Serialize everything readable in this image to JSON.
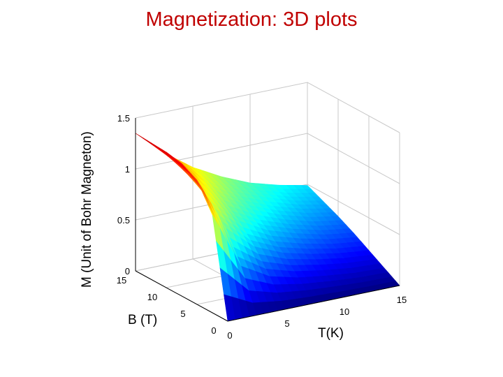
{
  "slide": {
    "title": "Magnetization: 3D plots"
  },
  "chart_data": {
    "type": "surface",
    "title": "",
    "xlabel": "T(K)",
    "ylabel": "B (T)",
    "zlabel": "M (Unit of Bohr Magneton)",
    "xlim": [
      0,
      15
    ],
    "ylim": [
      0,
      15
    ],
    "zlim": [
      0,
      1.5
    ],
    "x_ticks": [
      "0",
      "5",
      "10",
      "15"
    ],
    "y_ticks": [
      "0",
      "5",
      "10",
      "15"
    ],
    "z_ticks": [
      "0",
      "0.5",
      "1",
      "1.5"
    ],
    "grid": true,
    "colormap": "jet",
    "x": [
      0,
      2.5,
      5,
      7.5,
      10,
      12.5,
      15
    ],
    "y": [
      0,
      2.5,
      5,
      7.5,
      10,
      12.5,
      15
    ],
    "z": [
      [
        0.0,
        0.0,
        0.0,
        0.0,
        0.0,
        0.0,
        0.0
      ],
      [
        0.96,
        0.4,
        0.24,
        0.17,
        0.13,
        0.1,
        0.09
      ],
      [
        1.22,
        0.69,
        0.45,
        0.33,
        0.26,
        0.21,
        0.18
      ],
      [
        1.3,
        0.87,
        0.62,
        0.47,
        0.38,
        0.31,
        0.27
      ],
      [
        1.33,
        0.98,
        0.74,
        0.59,
        0.48,
        0.4,
        0.35
      ],
      [
        1.34,
        1.06,
        0.84,
        0.68,
        0.57,
        0.48,
        0.42
      ],
      [
        1.35,
        1.1,
        0.9,
        0.75,
        0.63,
        0.55,
        0.49
      ]
    ],
    "colors": {
      "title": "#c00000",
      "grid": "#c8c8c8",
      "axes": "#000000"
    }
  }
}
